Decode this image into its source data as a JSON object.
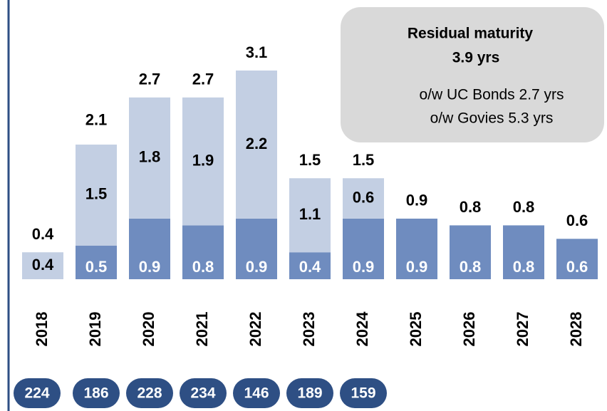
{
  "chart_data": {
    "type": "bar",
    "categories": [
      "2018",
      "2019",
      "2020",
      "2021",
      "2022",
      "2023",
      "2024",
      "2025",
      "2026",
      "2027",
      "2028"
    ],
    "series": [
      {
        "color": "#6f8cbf",
        "values": [
          0.0,
          0.5,
          0.9,
          0.8,
          0.9,
          0.4,
          0.9,
          0.9,
          0.8,
          0.8,
          0.6
        ],
        "value_labels": [
          "0.0",
          "0.5",
          "0.9",
          "0.8",
          "0.9",
          "0.4",
          "0.9",
          "0.9",
          "0.8",
          "0.8",
          "0.6"
        ]
      },
      {
        "color": "#c3cfe3",
        "values": [
          0.4,
          1.5,
          1.8,
          1.9,
          2.2,
          1.1,
          0.6,
          null,
          null,
          null,
          null
        ]
      }
    ],
    "totals": [
      0.4,
      2.1,
      2.7,
      2.7,
      3.1,
      1.5,
      1.5,
      0.9,
      0.8,
      0.8,
      0.6
    ],
    "ylim": [
      0,
      3.1
    ],
    "footer_values": [
      224,
      186,
      228,
      234,
      146,
      189,
      159
    ],
    "annotation": {
      "title": "Residual maturity",
      "subtitle": "3.9 yrs",
      "lines": [
        "o/w UC Bonds 2.7 yrs",
        "o/w Govies 5.3 yrs"
      ]
    }
  }
}
